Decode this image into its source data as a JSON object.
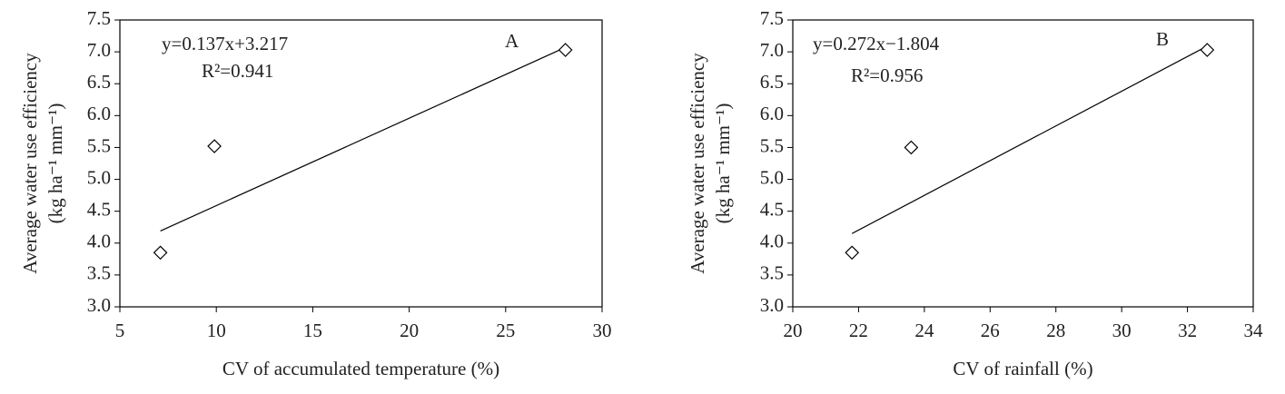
{
  "chart_data": [
    {
      "type": "scatter",
      "panel": "A",
      "x_label": "CV of accumulated temperature (%)",
      "y_label": [
        "Average water use efficiency",
        "(kg ha⁻¹ mm⁻¹)"
      ],
      "equation": "y=0.137x+3.217",
      "r_squared": "R²=0.941",
      "x": [
        7.1,
        9.9,
        28.1
      ],
      "values": [
        3.85,
        5.52,
        7.03
      ],
      "trendline": {
        "x": [
          7.1,
          28.1
        ],
        "y": [
          4.19,
          7.07
        ]
      },
      "xlim": [
        5,
        30
      ],
      "xticks": [
        5,
        10,
        15,
        20,
        25,
        30
      ],
      "ylim": [
        3,
        7.5
      ],
      "yticks": [
        {
          "value": 3,
          "label": "3.0"
        },
        3.5,
        {
          "value": 4,
          "label": "4.0"
        },
        4.5,
        {
          "value": 5,
          "label": "5.0"
        },
        5.5,
        {
          "value": 6,
          "label": "6.0"
        },
        6.5,
        {
          "value": 7,
          "label": "7.0"
        },
        7.5
      ],
      "color": "#000000"
    },
    {
      "type": "scatter",
      "panel": "B",
      "x_label": "CV of rainfall (%)",
      "y_label": [
        "Average water use efficiency",
        "(kg ha⁻¹ mm⁻¹)"
      ],
      "equation": "y=0.272x−1.804",
      "r_squared": "R²=0.956",
      "x": [
        21.8,
        23.6,
        32.6
      ],
      "values": [
        3.85,
        5.5,
        7.03
      ],
      "trendline": {
        "x": [
          21.8,
          32.6
        ],
        "y": [
          4.15,
          7.09
        ]
      },
      "xlim": [
        20,
        34
      ],
      "xticks": [
        20,
        22,
        24,
        26,
        28,
        30,
        32,
        34
      ],
      "ylim": [
        3,
        7.5
      ],
      "yticks": [
        {
          "value": 3,
          "label": "3.0"
        },
        3.5,
        {
          "value": 4,
          "label": "4.0"
        },
        4.5,
        {
          "value": 5,
          "label": "5.0"
        },
        5.5,
        {
          "value": 6,
          "label": "6.0"
        },
        6.5,
        {
          "value": 7,
          "label": "7.0"
        },
        7.5
      ],
      "color": "#000000"
    }
  ]
}
